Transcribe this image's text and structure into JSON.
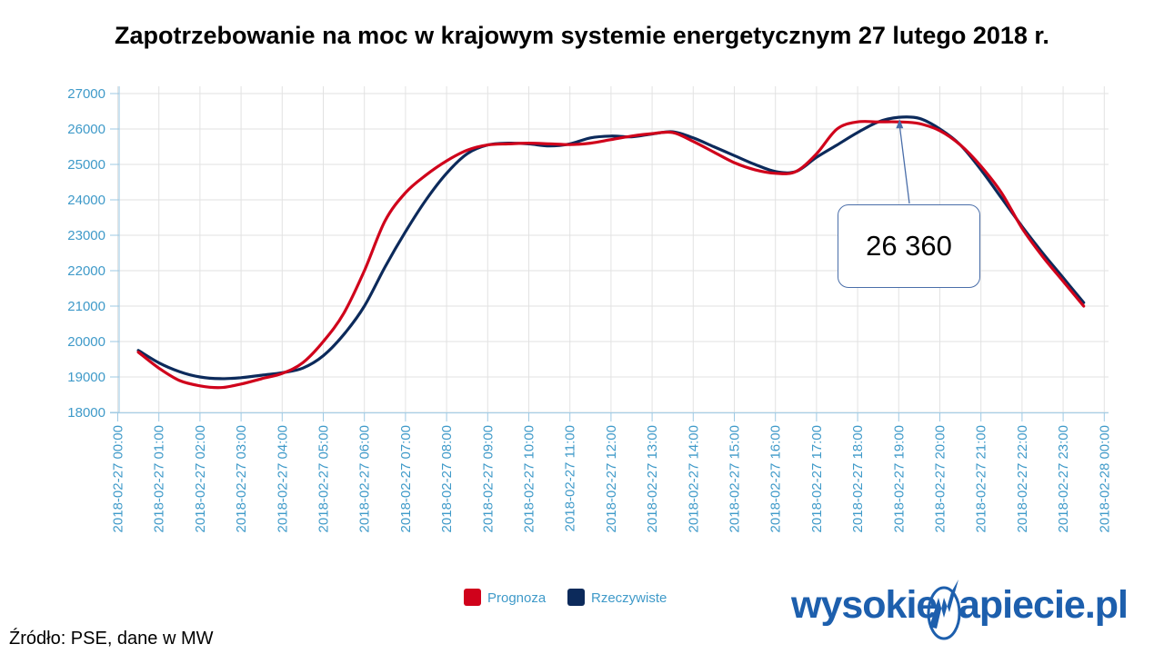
{
  "chart_data": {
    "type": "line",
    "title": "Zapotrzebowanie na moc w krajowym systemie energetycznym 27 lutego 2018 r.",
    "xlabel": "",
    "ylabel": "",
    "ylim": [
      18000,
      27000
    ],
    "y_ticks": [
      "27000",
      "26000",
      "25000",
      "24000",
      "23000",
      "22000",
      "21000",
      "20000",
      "19000",
      "18000"
    ],
    "x_range_hours": [
      0,
      24
    ],
    "x_ticks": [
      "2018-02-27 00:00",
      "2018-02-27 01:00",
      "2018-02-27 02:00",
      "2018-02-27 03:00",
      "2018-02-27 04:00",
      "2018-02-27 05:00",
      "2018-02-27 06:00",
      "2018-02-27 07:00",
      "2018-02-27 08:00",
      "2018-02-27 09:00",
      "2018-02-27 10:00",
      "2018-02-27 11:00",
      "2018-02-27 12:00",
      "2018-02-27 13:00",
      "2018-02-27 14:00",
      "2018-02-27 15:00",
      "2018-02-27 16:00",
      "2018-02-27 17:00",
      "2018-02-27 18:00",
      "2018-02-27 19:00",
      "2018-02-27 20:00",
      "2018-02-27 21:00",
      "2018-02-27 22:00",
      "2018-02-27 23:00",
      "2018-02-28 00:00"
    ],
    "grid": true,
    "legend_position": "bottom-center",
    "series": [
      {
        "name": "Prognoza",
        "color": "#d0021b",
        "x_hours": [
          0.5,
          1,
          1.5,
          2,
          2.5,
          3,
          3.5,
          4,
          4.5,
          5,
          5.5,
          6,
          6.5,
          7,
          7.5,
          8,
          8.5,
          9,
          9.5,
          10,
          10.5,
          11,
          11.5,
          12,
          12.5,
          13,
          13.5,
          14,
          14.5,
          15,
          15.5,
          16,
          16.5,
          17,
          17.5,
          18,
          18.5,
          19,
          19.5,
          20,
          20.5,
          21,
          21.5,
          22,
          22.5,
          23,
          23.5
        ],
        "values": [
          19700,
          19250,
          18900,
          18750,
          18700,
          18800,
          18950,
          19100,
          19400,
          20000,
          20800,
          22000,
          23400,
          24200,
          24700,
          25100,
          25400,
          25550,
          25580,
          25600,
          25580,
          25560,
          25600,
          25700,
          25800,
          25870,
          25900,
          25650,
          25350,
          25050,
          24850,
          24750,
          24800,
          25300,
          26000,
          26200,
          26200,
          26200,
          26150,
          25950,
          25550,
          24950,
          24200,
          23200,
          22400,
          21700,
          21000
        ]
      },
      {
        "name": "Rzeczywiste",
        "color": "#0c2a5b",
        "x_hours": [
          0.5,
          1,
          1.5,
          2,
          2.5,
          3,
          3.5,
          4,
          4.5,
          5,
          5.5,
          6,
          6.5,
          7,
          7.5,
          8,
          8.5,
          9,
          9.5,
          10,
          10.5,
          11,
          11.5,
          12,
          12.5,
          13,
          13.5,
          14,
          14.5,
          15,
          15.5,
          16,
          16.5,
          17,
          17.5,
          18,
          18.5,
          19,
          19.5,
          20,
          20.5,
          21,
          21.5,
          22,
          22.5,
          23,
          23.5
        ],
        "values": [
          19750,
          19400,
          19150,
          19000,
          18950,
          18980,
          19050,
          19120,
          19250,
          19600,
          20200,
          21000,
          22100,
          23100,
          24000,
          24750,
          25300,
          25550,
          25600,
          25580,
          25520,
          25580,
          25750,
          25800,
          25780,
          25860,
          25920,
          25750,
          25500,
          25250,
          25000,
          24800,
          24800,
          25200,
          25550,
          25900,
          26200,
          26330,
          26300,
          26000,
          25550,
          24850,
          24050,
          23250,
          22500,
          21800,
          21100
        ]
      }
    ],
    "annotation": {
      "label": "26 360",
      "x_hours": 19,
      "value": 26300
    },
    "legend": [
      {
        "label": "Prognoza",
        "color": "#d0021b"
      },
      {
        "label": "Rzeczywiste",
        "color": "#0c2a5b"
      }
    ]
  },
  "footer": {
    "source": "Źródło: PSE, dane w MW"
  },
  "brand": {
    "left": "wysokie",
    "right": "apiecie.pl",
    "mark_icon": "lightning-n-icon",
    "color": "#1d5fad"
  }
}
